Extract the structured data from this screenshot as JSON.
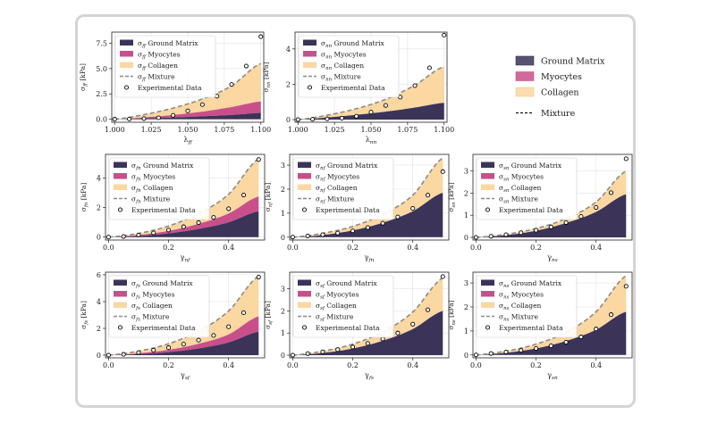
{
  "colors": {
    "ground_matrix": "#3b3358",
    "myocytes": "#c94f8a",
    "collagen": "#fbd7a1",
    "mixture": "#8a8a8a"
  },
  "figure_legend": {
    "items": [
      {
        "key": "ground_matrix",
        "label": "Ground Matrix"
      },
      {
        "key": "myocytes",
        "label": "Myocytes"
      },
      {
        "key": "collagen",
        "label": "Collagen"
      },
      {
        "key": "mixture",
        "label": "Mixture"
      }
    ]
  },
  "chart_data": [
    {
      "id": "ff",
      "type": "area",
      "ylabel": "σ_ff [kPa]",
      "xlabel": "λ_ff",
      "xlim": [
        0.998,
        1.102
      ],
      "ylim": [
        -0.3,
        8.6
      ],
      "xticks": [
        "1.000",
        "1.025",
        "1.050",
        "1.075",
        "1.100"
      ],
      "xtick_values": [
        1.0,
        1.025,
        1.05,
        1.075,
        1.1
      ],
      "yticks": [
        "0.0",
        "2.5",
        "5.0",
        "7.5"
      ],
      "ytick_values": [
        0,
        2.5,
        5.0,
        7.5
      ],
      "x": [
        1.0,
        1.02,
        1.04,
        1.06,
        1.08,
        1.1
      ],
      "ground": [
        0,
        0.08,
        0.17,
        0.28,
        0.42,
        0.62
      ],
      "myocytes": [
        0,
        0.18,
        0.42,
        0.75,
        1.2,
        1.75
      ],
      "mixture": [
        0,
        0.45,
        1.1,
        2.0,
        3.3,
        5.5
      ],
      "exp_x": [
        1.0,
        1.01,
        1.02,
        1.03,
        1.04,
        1.05,
        1.06,
        1.07,
        1.08,
        1.09,
        1.1
      ],
      "exp_y": [
        0.0,
        0.02,
        0.06,
        0.14,
        0.38,
        0.82,
        1.44,
        2.27,
        3.43,
        5.25,
        8.15
      ],
      "legend": [
        "σ_ff Ground Matrix",
        "σ_ff Myocytes",
        "σ_ff Collagen",
        "σ_ff Mixture",
        "Experimental Data"
      ]
    },
    {
      "id": "nn",
      "type": "area",
      "ylabel": "σ_nn [kPa]",
      "xlabel": "λ_nn",
      "xlim": [
        0.998,
        1.102
      ],
      "ylim": [
        -0.15,
        4.95
      ],
      "xticks": [
        "1.000",
        "1.025",
        "1.050",
        "1.075",
        "1.100"
      ],
      "xtick_values": [
        1.0,
        1.025,
        1.05,
        1.075,
        1.1
      ],
      "yticks": [
        "0",
        "2",
        "4"
      ],
      "ytick_values": [
        0,
        2,
        4
      ],
      "x": [
        1.0,
        1.02,
        1.04,
        1.06,
        1.08,
        1.1
      ],
      "ground": [
        0,
        0.12,
        0.27,
        0.45,
        0.68,
        0.95
      ],
      "myocytes": [
        0,
        0.12,
        0.27,
        0.45,
        0.68,
        0.95
      ],
      "mixture": [
        0,
        0.25,
        0.62,
        1.15,
        1.95,
        3.0
      ],
      "exp_x": [
        1.0,
        1.01,
        1.02,
        1.03,
        1.04,
        1.05,
        1.06,
        1.07,
        1.08,
        1.09,
        1.1
      ],
      "exp_y": [
        0.0,
        0.02,
        0.04,
        0.08,
        0.19,
        0.42,
        0.8,
        1.27,
        1.92,
        2.93,
        4.78
      ],
      "legend": [
        "σ_nn Ground Matrix",
        "σ_nn Myocytes",
        "σ_nn Collagen",
        "σ_nn Mixture",
        "Experimental Data"
      ]
    },
    {
      "id": "fn",
      "type": "area",
      "ylabel": "σ_fn [kPa]",
      "xlabel": "γ_nf",
      "xlim": [
        -0.01,
        0.52
      ],
      "ylim": [
        -0.2,
        5.6
      ],
      "xticks": [
        "0.0",
        "0.2",
        "0.4"
      ],
      "xtick_values": [
        0,
        0.2,
        0.4
      ],
      "yticks": [
        "0",
        "2",
        "4"
      ],
      "ytick_values": [
        0,
        2,
        4
      ],
      "x": [
        0,
        0.1,
        0.2,
        0.3,
        0.4,
        0.5
      ],
      "ground": [
        0,
        0.08,
        0.25,
        0.55,
        1.0,
        1.75
      ],
      "myocytes": [
        0,
        0.14,
        0.42,
        0.9,
        1.6,
        2.75
      ],
      "mixture": [
        0,
        0.25,
        0.75,
        1.6,
        2.9,
        5.3
      ],
      "exp_x": [
        0,
        0.05,
        0.1,
        0.15,
        0.2,
        0.25,
        0.3,
        0.35,
        0.4,
        0.45,
        0.5
      ],
      "exp_y": [
        0.0,
        0.04,
        0.14,
        0.28,
        0.47,
        0.7,
        0.98,
        1.33,
        1.92,
        2.85,
        5.25
      ],
      "legend": [
        "σ_fn Ground Matrix",
        "σ_fn Myocytes",
        "σ_fn Collagen",
        "σ_fn Mixture",
        "Experimental Data"
      ]
    },
    {
      "id": "nf",
      "type": "area",
      "ylabel": "σ_nf [kPa]",
      "xlabel": "γ_fn",
      "xlim": [
        -0.01,
        0.52
      ],
      "ylim": [
        -0.12,
        3.45
      ],
      "xticks": [
        "0.0",
        "0.2",
        "0.4"
      ],
      "xtick_values": [
        0,
        0.2,
        0.4
      ],
      "yticks": [
        "0",
        "1",
        "2",
        "3"
      ],
      "ytick_values": [
        0,
        1,
        2,
        3
      ],
      "x": [
        0,
        0.1,
        0.2,
        0.3,
        0.4,
        0.5
      ],
      "ground": [
        0,
        0.09,
        0.28,
        0.6,
        1.08,
        1.85
      ],
      "myocytes": [
        0,
        0.09,
        0.28,
        0.6,
        1.08,
        1.85
      ],
      "mixture": [
        0,
        0.16,
        0.45,
        0.95,
        1.75,
        3.3
      ],
      "exp_x": [
        0,
        0.05,
        0.1,
        0.15,
        0.2,
        0.25,
        0.3,
        0.35,
        0.4,
        0.45,
        0.5
      ],
      "exp_y": [
        0.0,
        0.05,
        0.1,
        0.17,
        0.26,
        0.4,
        0.58,
        0.84,
        1.2,
        1.75,
        2.73
      ],
      "legend": [
        "σ_nf Ground Matrix",
        "σ_nf Myocytes",
        "σ_nf Collagen",
        "σ_nf Mixture",
        "Experimental Data"
      ]
    },
    {
      "id": "sn",
      "type": "area",
      "ylabel": "σ_sn [kPa]",
      "xlabel": "γ_ns",
      "xlim": [
        -0.01,
        0.52
      ],
      "ylim": [
        -0.12,
        3.75
      ],
      "xticks": [
        "0.0",
        "0.2",
        "0.4"
      ],
      "xtick_values": [
        0,
        0.2,
        0.4
      ],
      "yticks": [
        "0",
        "1",
        "2",
        "3"
      ],
      "ytick_values": [
        0,
        1,
        2,
        3
      ],
      "x": [
        0,
        0.1,
        0.2,
        0.3,
        0.4,
        0.5
      ],
      "ground": [
        0,
        0.1,
        0.3,
        0.65,
        1.15,
        1.95
      ],
      "myocytes": [
        0,
        0.1,
        0.3,
        0.65,
        1.15,
        1.95
      ],
      "mixture": [
        0,
        0.14,
        0.4,
        0.85,
        1.6,
        3.0
      ],
      "exp_x": [
        0,
        0.05,
        0.1,
        0.15,
        0.2,
        0.25,
        0.3,
        0.35,
        0.4,
        0.45,
        0.5
      ],
      "exp_y": [
        0.0,
        0.05,
        0.12,
        0.21,
        0.32,
        0.47,
        0.67,
        0.94,
        1.35,
        2.02,
        3.55
      ],
      "legend": [
        "σ_sn Ground Matrix",
        "σ_sn Myocytes",
        "σ_sn Collagen",
        "σ_sn Mixture",
        "Experimental Data"
      ]
    },
    {
      "id": "fs",
      "type": "area",
      "ylabel": "σ_fs [kPa]",
      "xlabel": "γ_sf",
      "xlim": [
        -0.01,
        0.52
      ],
      "ylim": [
        -0.2,
        6.2
      ],
      "xticks": [
        "0.0",
        "0.2",
        "0.4"
      ],
      "xtick_values": [
        0,
        0.2,
        0.4
      ],
      "yticks": [
        "0",
        "2",
        "4",
        "6"
      ],
      "ytick_values": [
        0,
        2,
        4,
        6
      ],
      "x": [
        0,
        0.1,
        0.2,
        0.3,
        0.4,
        0.5
      ],
      "ground": [
        0,
        0.08,
        0.22,
        0.5,
        0.95,
        1.75
      ],
      "myocytes": [
        0,
        0.14,
        0.4,
        0.85,
        1.55,
        2.9
      ],
      "mixture": [
        0,
        0.3,
        0.85,
        1.8,
        3.3,
        5.9
      ],
      "exp_x": [
        0,
        0.05,
        0.1,
        0.15,
        0.2,
        0.25,
        0.3,
        0.35,
        0.4,
        0.45,
        0.5
      ],
      "exp_y": [
        0.0,
        0.06,
        0.19,
        0.37,
        0.56,
        0.82,
        1.12,
        1.47,
        2.12,
        3.17,
        5.83
      ],
      "legend": [
        "σ_fs Ground Matrix",
        "σ_fs Myocytes",
        "σ_fs Collagen",
        "σ_fs Mixture",
        "Experimental Data"
      ]
    },
    {
      "id": "sf",
      "type": "area",
      "ylabel": "σ_sf [kPa]",
      "xlabel": "γ_fs",
      "xlim": [
        -0.01,
        0.52
      ],
      "ylim": [
        -0.12,
        3.75
      ],
      "xticks": [
        "0.0",
        "0.2",
        "0.4"
      ],
      "xtick_values": [
        0,
        0.2,
        0.4
      ],
      "yticks": [
        "0",
        "1",
        "2",
        "3"
      ],
      "ytick_values": [
        0,
        1,
        2,
        3
      ],
      "x": [
        0,
        0.1,
        0.2,
        0.3,
        0.4,
        0.5
      ],
      "ground": [
        0,
        0.1,
        0.3,
        0.65,
        1.18,
        2.0
      ],
      "myocytes": [
        0,
        0.1,
        0.3,
        0.65,
        1.18,
        2.0
      ],
      "mixture": [
        0,
        0.18,
        0.5,
        1.05,
        1.95,
        3.5
      ],
      "exp_x": [
        0,
        0.05,
        0.1,
        0.15,
        0.2,
        0.25,
        0.3,
        0.35,
        0.4,
        0.45,
        0.5
      ],
      "exp_y": [
        0.0,
        0.07,
        0.15,
        0.25,
        0.37,
        0.53,
        0.73,
        1.0,
        1.4,
        2.05,
        3.55
      ],
      "legend": [
        "σ_sf Ground Matrix",
        "σ_sf Myocytes",
        "σ_sf Collagen",
        "σ_sf Mixture",
        "Experimental Data"
      ]
    },
    {
      "id": "ns",
      "type": "area",
      "ylabel": "σ_ns [kPa]",
      "xlabel": "γ_sn",
      "xlim": [
        -0.01,
        0.52
      ],
      "ylim": [
        -0.12,
        3.45
      ],
      "xticks": [
        "0.0",
        "0.2",
        "0.4"
      ],
      "xtick_values": [
        0,
        0.2,
        0.4
      ],
      "yticks": [
        "0",
        "1",
        "2",
        "3"
      ],
      "ytick_values": [
        0,
        1,
        2,
        3
      ],
      "x": [
        0,
        0.1,
        0.2,
        0.3,
        0.4,
        0.5
      ],
      "ground": [
        0,
        0.09,
        0.27,
        0.58,
        1.05,
        1.8
      ],
      "myocytes": [
        0,
        0.09,
        0.27,
        0.58,
        1.05,
        1.8
      ],
      "mixture": [
        0,
        0.16,
        0.45,
        0.95,
        1.8,
        3.3
      ],
      "exp_x": [
        0,
        0.05,
        0.1,
        0.15,
        0.2,
        0.25,
        0.3,
        0.35,
        0.4,
        0.45,
        0.5
      ],
      "exp_y": [
        0.0,
        0.06,
        0.12,
        0.19,
        0.27,
        0.38,
        0.53,
        0.75,
        1.08,
        1.68,
        2.86
      ],
      "legend": [
        "σ_ns Ground Matrix",
        "σ_ns Myocytes",
        "σ_ns Collagen",
        "σ_ns Mixture",
        "Experimental Data"
      ]
    }
  ]
}
